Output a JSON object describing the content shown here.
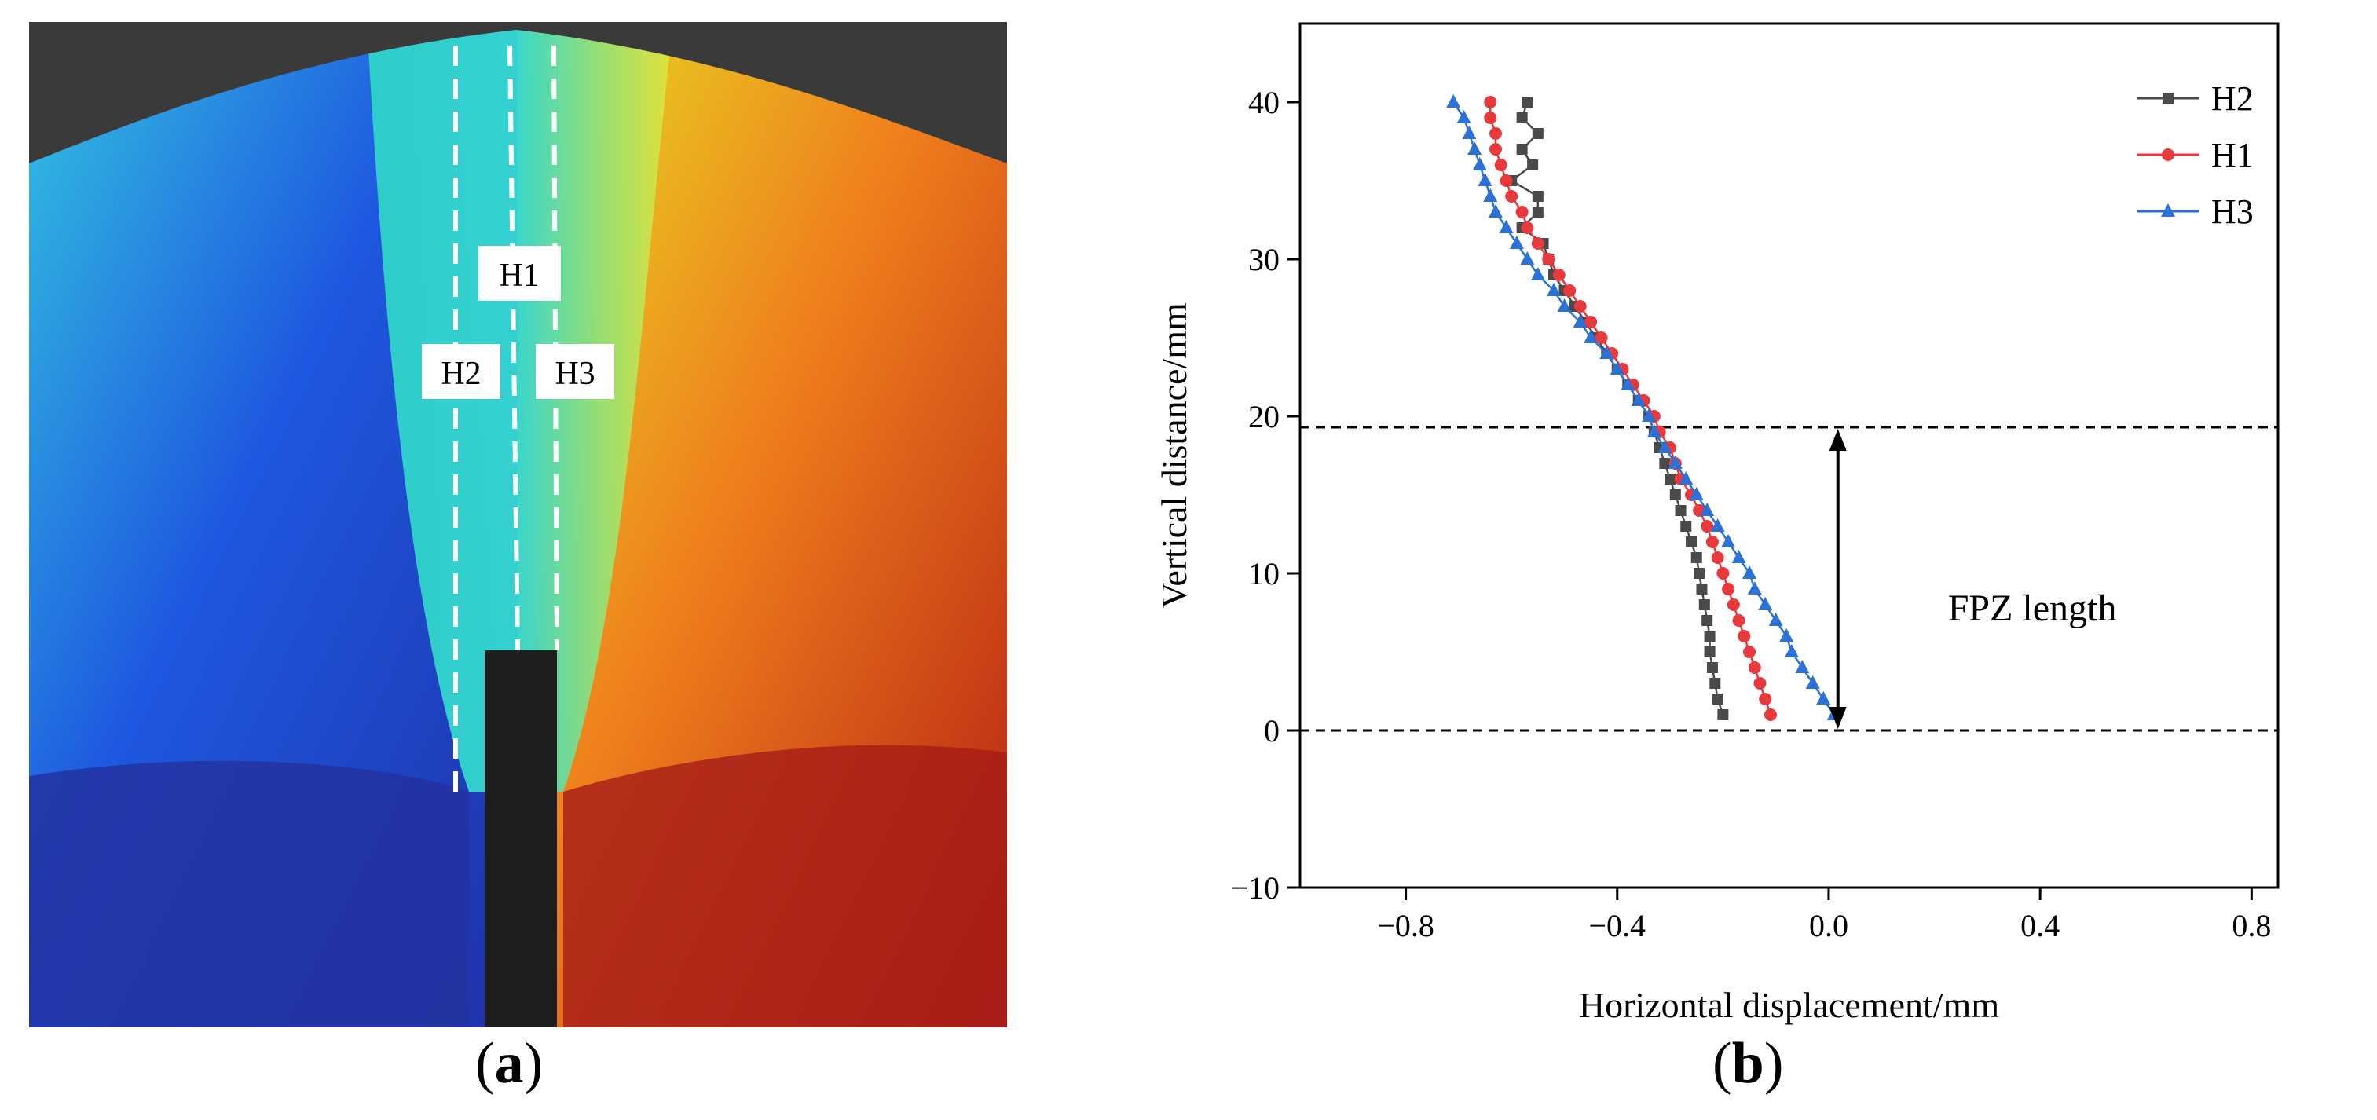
{
  "panels": {
    "a": {
      "label": "a"
    },
    "b": {
      "label": "b"
    }
  },
  "dic_map": {
    "line_labels": [
      "H1",
      "H2",
      "H3"
    ],
    "colors": {
      "background": "#3a3a3a",
      "blue": "#1f2fd6",
      "cyan": "#33d6d6",
      "yellow": "#e8e620",
      "red": "#d8231c",
      "notch": "#1e1e1e"
    }
  },
  "chart_data": {
    "type": "scatter",
    "xlabel": "Horizontal displacement/mm",
    "ylabel": "Vertical distance/mm",
    "xlim": [
      -1.0,
      0.85
    ],
    "ylim": [
      -10,
      45
    ],
    "xticks": [
      -0.8,
      -0.4,
      0.0,
      0.4,
      0.8
    ],
    "xtick_labels": [
      "−0.8",
      "−0.4",
      "0.0",
      "0.4",
      "0.8"
    ],
    "yticks": [
      -10,
      0,
      10,
      20,
      30,
      40
    ],
    "ytick_labels": [
      "−10",
      "0",
      "10",
      "20",
      "30",
      "40"
    ],
    "grid": false,
    "legend_position": "top-right",
    "annotation": {
      "text": "FPZ length",
      "from_y": 0,
      "to_y": 19.3
    },
    "reference_lines_y": [
      0,
      19.3
    ],
    "series": [
      {
        "name": "H2",
        "color": "#4a4a4a",
        "marker": "square",
        "y": [
          1,
          2,
          3,
          4,
          5,
          6,
          7,
          8,
          9,
          10,
          11,
          12,
          13,
          14,
          15,
          16,
          17,
          18,
          19,
          20,
          21,
          22,
          23,
          24,
          25,
          26,
          27,
          28,
          29,
          30,
          31,
          32,
          33,
          34,
          35,
          36,
          37,
          38,
          39,
          40
        ],
        "x": [
          -0.2,
          -0.21,
          -0.215,
          -0.22,
          -0.225,
          -0.225,
          -0.23,
          -0.235,
          -0.24,
          -0.245,
          -0.25,
          -0.26,
          -0.27,
          -0.28,
          -0.29,
          -0.3,
          -0.31,
          -0.32,
          -0.33,
          -0.34,
          -0.36,
          -0.38,
          -0.4,
          -0.42,
          -0.44,
          -0.46,
          -0.48,
          -0.5,
          -0.52,
          -0.53,
          -0.54,
          -0.58,
          -0.55,
          -0.55,
          -0.6,
          -0.56,
          -0.58,
          -0.55,
          -0.58,
          -0.57
        ]
      },
      {
        "name": "H1",
        "color": "#e8393c",
        "marker": "circle",
        "y": [
          1,
          2,
          3,
          4,
          5,
          6,
          7,
          8,
          9,
          10,
          11,
          12,
          13,
          14,
          15,
          16,
          17,
          18,
          19,
          20,
          21,
          22,
          23,
          24,
          25,
          26,
          27,
          28,
          29,
          30,
          31,
          32,
          33,
          34,
          35,
          36,
          37,
          38,
          39,
          40
        ],
        "x": [
          -0.11,
          -0.12,
          -0.13,
          -0.14,
          -0.15,
          -0.16,
          -0.17,
          -0.18,
          -0.19,
          -0.2,
          -0.21,
          -0.22,
          -0.23,
          -0.245,
          -0.26,
          -0.28,
          -0.29,
          -0.3,
          -0.32,
          -0.33,
          -0.35,
          -0.37,
          -0.39,
          -0.41,
          -0.43,
          -0.45,
          -0.47,
          -0.49,
          -0.51,
          -0.53,
          -0.55,
          -0.57,
          -0.58,
          -0.6,
          -0.61,
          -0.62,
          -0.63,
          -0.63,
          -0.64,
          -0.64
        ]
      },
      {
        "name": "H3",
        "color": "#2c72d6",
        "marker": "triangle",
        "y": [
          1,
          2,
          3,
          4,
          5,
          6,
          7,
          8,
          9,
          10,
          11,
          12,
          13,
          14,
          15,
          16,
          17,
          18,
          19,
          20,
          21,
          22,
          23,
          24,
          25,
          26,
          27,
          28,
          29,
          30,
          31,
          32,
          33,
          34,
          35,
          36,
          37,
          38,
          39,
          40
        ],
        "x": [
          0.01,
          -0.01,
          -0.03,
          -0.05,
          -0.07,
          -0.08,
          -0.1,
          -0.12,
          -0.14,
          -0.15,
          -0.17,
          -0.19,
          -0.21,
          -0.23,
          -0.25,
          -0.27,
          -0.29,
          -0.31,
          -0.33,
          -0.34,
          -0.36,
          -0.38,
          -0.4,
          -0.42,
          -0.45,
          -0.47,
          -0.5,
          -0.52,
          -0.55,
          -0.57,
          -0.59,
          -0.61,
          -0.63,
          -0.64,
          -0.65,
          -0.66,
          -0.67,
          -0.68,
          -0.69,
          -0.71
        ]
      }
    ]
  }
}
